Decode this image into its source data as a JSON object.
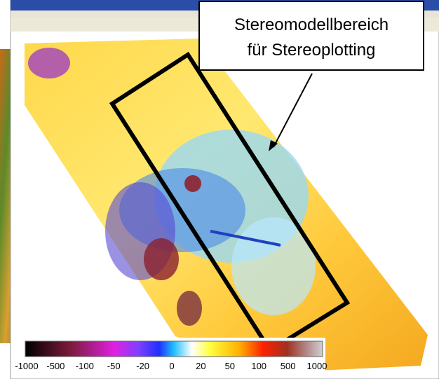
{
  "callout": {
    "lines": [
      "Stereomodellbereich",
      "für Stereoplotting"
    ]
  },
  "colorbar": {
    "labels": [
      -1000,
      -500,
      -100,
      -50,
      -20,
      0,
      20,
      50,
      100,
      500,
      1000
    ]
  }
}
